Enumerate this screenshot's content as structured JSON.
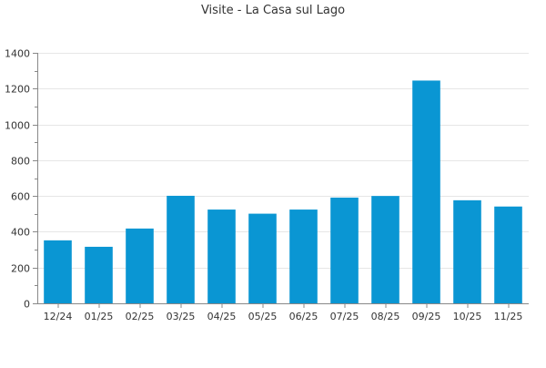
{
  "chart_data": {
    "type": "bar",
    "title": "Visite - La Casa sul Lago",
    "xlabel": "",
    "ylabel": "",
    "categories": [
      "12/24",
      "01/25",
      "02/25",
      "03/25",
      "04/25",
      "05/25",
      "06/25",
      "07/25",
      "08/25",
      "09/25",
      "10/25",
      "11/25"
    ],
    "values": [
      352,
      316,
      418,
      601,
      524,
      501,
      524,
      591,
      600,
      1245,
      576,
      541
    ],
    "ylim": [
      0,
      1400
    ],
    "yticks": [
      0,
      200,
      400,
      600,
      800,
      1000,
      1200,
      1400
    ],
    "grid": true,
    "legend": "none",
    "colors": {
      "bar": "#0a96d3",
      "grid": "#e6e6e6",
      "axis": "#888888",
      "text": "#333333"
    }
  }
}
